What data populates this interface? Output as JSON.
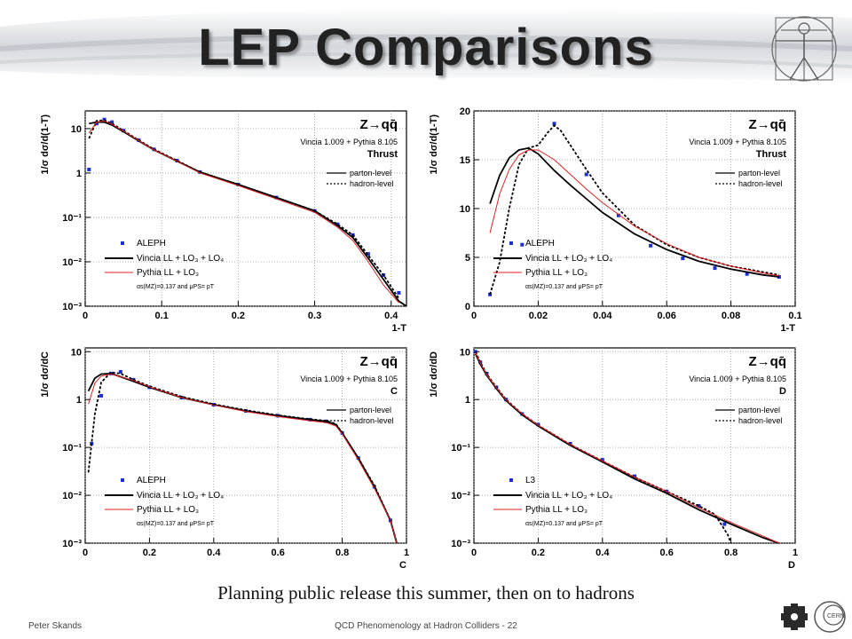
{
  "slide": {
    "title": "LEP Comparisons",
    "caption": "Planning public release this summer, then on to hadrons",
    "footer_left": "Peter Skands",
    "footer_center": "QCD Phenomenology at Hadron Colliders - 22"
  },
  "colors": {
    "data": "#1a2fd6",
    "vincia": "#000000",
    "pythia": "#e02020",
    "band": "#f5e23a",
    "grid": "#999999"
  },
  "chart_data": [
    {
      "type": "line",
      "process": "Z→qq̄",
      "generator": "Vincia 1.009 + Pythia 8.105",
      "observable": "Thrust",
      "xlabel": "1-T",
      "ylabel": "1/σ dσ/d(1-T)",
      "xlim": [
        0,
        0.42
      ],
      "ylim": [
        0.001,
        25
      ],
      "yscale": "log",
      "xticks": [
        "0",
        "0.1",
        "0.2",
        "0.3",
        "0.4"
      ],
      "yticks": [
        "10⁻³",
        "10⁻²",
        "10⁻¹",
        "1",
        "10"
      ],
      "legend_top": [
        "parton-level",
        "hadron-level"
      ],
      "legend_bottom": [
        "ALEPH",
        "Vincia LL + LO₃ + LO₄",
        "Pythia LL + LO₃"
      ],
      "note": "αs(MZ)=0.137 and μPS= pT",
      "series": [
        {
          "name": "ALEPH",
          "style": "points",
          "x": [
            0.005,
            0.015,
            0.025,
            0.035,
            0.05,
            0.07,
            0.09,
            0.12,
            0.15,
            0.2,
            0.25,
            0.3,
            0.33,
            0.35,
            0.37,
            0.39,
            0.41
          ],
          "y": [
            1.2,
            13,
            16,
            14,
            9,
            5.5,
            3.4,
            1.9,
            1.05,
            0.55,
            0.28,
            0.14,
            0.07,
            0.04,
            0.015,
            0.005,
            0.002
          ]
        },
        {
          "name": "Vincia parton-level",
          "style": "solid",
          "x": [
            0.005,
            0.015,
            0.025,
            0.035,
            0.05,
            0.07,
            0.09,
            0.12,
            0.15,
            0.2,
            0.25,
            0.3,
            0.33,
            0.35,
            0.37,
            0.39,
            0.41,
            0.42
          ],
          "y": [
            13,
            14,
            14,
            12,
            8.5,
            5.3,
            3.3,
            1.85,
            1.05,
            0.55,
            0.28,
            0.14,
            0.065,
            0.035,
            0.012,
            0.004,
            0.0013,
            0.001
          ]
        },
        {
          "name": "Vincia hadron-level",
          "style": "dashed",
          "x": [
            0.005,
            0.015,
            0.025,
            0.035,
            0.05,
            0.07,
            0.09,
            0.12,
            0.15,
            0.2,
            0.25,
            0.3,
            0.33,
            0.35,
            0.37,
            0.39,
            0.41
          ],
          "y": [
            6,
            15,
            15.5,
            13,
            9,
            5.5,
            3.4,
            1.9,
            1.05,
            0.55,
            0.28,
            0.14,
            0.07,
            0.04,
            0.014,
            0.005,
            0.0015
          ]
        },
        {
          "name": "Pythia LL + LO3",
          "style": "thin",
          "x": [
            0.005,
            0.015,
            0.025,
            0.035,
            0.05,
            0.07,
            0.09,
            0.12,
            0.15,
            0.2,
            0.25,
            0.3,
            0.33,
            0.35,
            0.37,
            0.39,
            0.41
          ],
          "y": [
            8,
            14,
            15,
            12.5,
            8.8,
            5.4,
            3.3,
            1.85,
            1.0,
            0.52,
            0.26,
            0.13,
            0.06,
            0.03,
            0.01,
            0.003,
            0.0012
          ]
        }
      ]
    },
    {
      "type": "line",
      "process": "Z→qq̄",
      "generator": "Vincia 1.009 + Pythia 8.105",
      "observable": "Thrust",
      "xlabel": "1-T",
      "ylabel": "1/σ dσ/d(1-T)",
      "xlim": [
        0,
        0.1
      ],
      "ylim": [
        0,
        20
      ],
      "yscale": "linear",
      "xticks": [
        "0",
        "0.02",
        "0.04",
        "0.06",
        "0.08",
        "0.1"
      ],
      "yticks": [
        "0",
        "5",
        "10",
        "15",
        "20"
      ],
      "legend_top": [
        "parton-level",
        "hadron-level"
      ],
      "legend_bottom": [
        "ALEPH",
        "Vincia LL + LO₃ + LO₄",
        "Pythia LL + LO₃"
      ],
      "note": "αs(MZ)=0.137 and μPS= pT",
      "series": [
        {
          "name": "ALEPH",
          "style": "points",
          "x": [
            0.005,
            0.015,
            0.025,
            0.035,
            0.045,
            0.055,
            0.065,
            0.075,
            0.085,
            0.095
          ],
          "y": [
            1.2,
            6.3,
            18.7,
            13.5,
            9.3,
            6.2,
            4.9,
            3.9,
            3.3,
            3.0
          ]
        },
        {
          "name": "Vincia parton-level",
          "style": "solid",
          "x": [
            0.005,
            0.008,
            0.011,
            0.014,
            0.017,
            0.02,
            0.025,
            0.03,
            0.035,
            0.04,
            0.05,
            0.06,
            0.07,
            0.08,
            0.09,
            0.095
          ],
          "y": [
            10.5,
            13.4,
            15.2,
            16.0,
            16.2,
            15.6,
            13.9,
            12.4,
            11.0,
            9.6,
            7.4,
            5.8,
            4.6,
            3.8,
            3.2,
            3.0
          ]
        },
        {
          "name": "Vincia hadron-level",
          "style": "dashed",
          "x": [
            0.005,
            0.008,
            0.011,
            0.014,
            0.017,
            0.02,
            0.023,
            0.025,
            0.027,
            0.03,
            0.035,
            0.04,
            0.05,
            0.06,
            0.07,
            0.08,
            0.09,
            0.095
          ],
          "y": [
            1.2,
            4.5,
            10.0,
            14.5,
            16.2,
            16.5,
            17.8,
            18.5,
            18.0,
            16.5,
            14.0,
            11.6,
            8.3,
            6.3,
            5.0,
            4.1,
            3.5,
            3.2
          ]
        },
        {
          "name": "Pythia LL + LO3",
          "style": "thin",
          "x": [
            0.005,
            0.008,
            0.011,
            0.014,
            0.017,
            0.02,
            0.025,
            0.03,
            0.035,
            0.04,
            0.05,
            0.06,
            0.07,
            0.08,
            0.09,
            0.095
          ],
          "y": [
            7.5,
            11.5,
            14.0,
            15.5,
            16.0,
            16.0,
            15.0,
            13.5,
            12.0,
            10.6,
            8.2,
            6.4,
            5.0,
            4.1,
            3.4,
            3.1
          ]
        }
      ]
    },
    {
      "type": "line",
      "process": "Z→qq̄",
      "generator": "Vincia 1.009 + Pythia 8.105",
      "observable": "C",
      "xlabel": "C",
      "ylabel": "1/σ dσ/dC",
      "xlim": [
        0,
        1
      ],
      "ylim": [
        0.001,
        12
      ],
      "yscale": "log",
      "xticks": [
        "0",
        "0.2",
        "0.4",
        "0.6",
        "0.8",
        "1"
      ],
      "yticks": [
        "10⁻³",
        "10⁻²",
        "10⁻¹",
        "1",
        "10"
      ],
      "legend_top": [
        "parton-level",
        "hadron-level"
      ],
      "legend_bottom": [
        "ALEPH",
        "Vincia LL + LO₃ + LO₄",
        "Pythia LL + LO₃"
      ],
      "note": "αs(MZ)=0.137 and μPS= pT",
      "series": [
        {
          "name": "ALEPH",
          "style": "points",
          "x": [
            0.02,
            0.05,
            0.08,
            0.11,
            0.15,
            0.2,
            0.3,
            0.4,
            0.5,
            0.6,
            0.7,
            0.75,
            0.8,
            0.85,
            0.9,
            0.95
          ],
          "y": [
            0.12,
            1.2,
            3.5,
            3.8,
            2.6,
            1.8,
            1.1,
            0.78,
            0.58,
            0.46,
            0.38,
            0.35,
            0.2,
            0.06,
            0.015,
            0.003
          ]
        },
        {
          "name": "Vincia parton-level",
          "style": "solid",
          "x": [
            0.01,
            0.03,
            0.05,
            0.08,
            0.11,
            0.15,
            0.2,
            0.3,
            0.4,
            0.5,
            0.6,
            0.7,
            0.75,
            0.78,
            0.8,
            0.85,
            0.9,
            0.95,
            0.97
          ],
          "y": [
            1.5,
            2.8,
            3.4,
            3.5,
            3.0,
            2.4,
            1.8,
            1.1,
            0.78,
            0.58,
            0.46,
            0.38,
            0.35,
            0.3,
            0.2,
            0.06,
            0.015,
            0.003,
            0.001
          ]
        },
        {
          "name": "Vincia hadron-level",
          "style": "dashed",
          "x": [
            0.01,
            0.03,
            0.05,
            0.08,
            0.11,
            0.15,
            0.2,
            0.3,
            0.4,
            0.5,
            0.6,
            0.7,
            0.75,
            0.78,
            0.8,
            0.85,
            0.9,
            0.95,
            0.97
          ],
          "y": [
            0.03,
            0.5,
            2.3,
            3.7,
            3.5,
            2.6,
            1.9,
            1.15,
            0.8,
            0.6,
            0.47,
            0.39,
            0.36,
            0.31,
            0.2,
            0.06,
            0.016,
            0.003,
            0.001
          ]
        },
        {
          "name": "Pythia LL + LO3",
          "style": "thin",
          "x": [
            0.01,
            0.03,
            0.05,
            0.08,
            0.11,
            0.15,
            0.2,
            0.3,
            0.4,
            0.5,
            0.6,
            0.7,
            0.75,
            0.78,
            0.8,
            0.85,
            0.9,
            0.95,
            0.97
          ],
          "y": [
            0.8,
            2.2,
            3.1,
            3.4,
            3.0,
            2.5,
            1.85,
            1.1,
            0.77,
            0.56,
            0.44,
            0.36,
            0.33,
            0.28,
            0.19,
            0.055,
            0.014,
            0.003,
            0.001
          ]
        }
      ]
    },
    {
      "type": "line",
      "process": "Z→qq̄",
      "generator": "Vincia 1.009 + Pythia 8.105",
      "observable": "D",
      "xlabel": "D",
      "ylabel": "1/σ dσ/dD",
      "xlim": [
        0,
        1
      ],
      "ylim": [
        0.001,
        12
      ],
      "yscale": "log",
      "xticks": [
        "0",
        "0.2",
        "0.4",
        "0.6",
        "0.8",
        "1"
      ],
      "yticks": [
        "10⁻³",
        "10⁻²",
        "10⁻¹",
        "1",
        "10"
      ],
      "legend_top": [
        "parton-level",
        "hadron-level"
      ],
      "legend_bottom": [
        "L3",
        "Vincia LL + LO₃ + LO₄",
        "Pythia LL + LO₃"
      ],
      "note": "αs(MZ)=0.137 and μPS= pT",
      "series": [
        {
          "name": "L3",
          "style": "points",
          "x": [
            0.005,
            0.02,
            0.04,
            0.07,
            0.1,
            0.15,
            0.2,
            0.3,
            0.4,
            0.5,
            0.6,
            0.7,
            0.78
          ],
          "y": [
            10,
            6,
            3.5,
            1.8,
            1.0,
            0.5,
            0.3,
            0.12,
            0.055,
            0.025,
            0.012,
            0.006,
            0.0025
          ]
        },
        {
          "name": "Vincia parton-level",
          "style": "solid",
          "x": [
            0.005,
            0.02,
            0.04,
            0.07,
            0.1,
            0.15,
            0.2,
            0.3,
            0.4,
            0.5,
            0.6,
            0.7,
            0.8,
            0.9,
            0.95
          ],
          "y": [
            9,
            5.5,
            3.2,
            1.7,
            0.95,
            0.48,
            0.28,
            0.11,
            0.05,
            0.022,
            0.011,
            0.005,
            0.0025,
            0.0013,
            0.001
          ]
        },
        {
          "name": "Vincia hadron-level",
          "style": "dashed",
          "x": [
            0.005,
            0.02,
            0.04,
            0.07,
            0.1,
            0.15,
            0.2,
            0.3,
            0.4,
            0.5,
            0.6,
            0.7,
            0.75,
            0.79,
            0.8
          ],
          "y": [
            10,
            6,
            3.4,
            1.8,
            1.0,
            0.5,
            0.29,
            0.115,
            0.052,
            0.024,
            0.012,
            0.006,
            0.004,
            0.0015,
            0.001
          ]
        },
        {
          "name": "Pythia LL + LO3",
          "style": "thin",
          "x": [
            0.005,
            0.02,
            0.04,
            0.07,
            0.1,
            0.15,
            0.2,
            0.3,
            0.4,
            0.5,
            0.6,
            0.7,
            0.8,
            0.9,
            0.95
          ],
          "y": [
            9.5,
            5.8,
            3.3,
            1.75,
            0.98,
            0.5,
            0.29,
            0.115,
            0.052,
            0.024,
            0.012,
            0.0055,
            0.0027,
            0.0014,
            0.001
          ]
        }
      ]
    }
  ]
}
